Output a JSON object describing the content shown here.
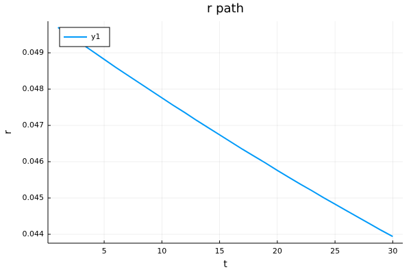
{
  "chart_data": {
    "type": "line",
    "title": "r path",
    "x_label": "t",
    "y_label": "r",
    "x": [
      1,
      2,
      3,
      4,
      5,
      6,
      7,
      8,
      9,
      10,
      11,
      12,
      13,
      14,
      15,
      16,
      17,
      18,
      19,
      20,
      21,
      22,
      23,
      24,
      25,
      26,
      27,
      28,
      29,
      30
    ],
    "series": [
      {
        "name": "y1",
        "color": "#009af9",
        "values": [
          0.0497,
          0.04948,
          0.04926,
          0.04904,
          0.04882,
          0.0486,
          0.04839,
          0.04818,
          0.04797,
          0.04776,
          0.04755,
          0.04735,
          0.04714,
          0.04694,
          0.04674,
          0.04654,
          0.04634,
          0.04615,
          0.04596,
          0.04576,
          0.04557,
          0.04538,
          0.0452,
          0.04501,
          0.04483,
          0.04465,
          0.04447,
          0.04429,
          0.04411,
          0.04394
        ]
      }
    ],
    "xlim": [
      0.13,
      30.87
    ],
    "ylim": [
      0.043755,
      0.04987
    ],
    "xticks": [
      5,
      10,
      15,
      20,
      25,
      30
    ],
    "yticks": [
      0.044,
      0.045,
      0.046,
      0.047,
      0.048,
      0.049
    ],
    "grid": true,
    "legend": "top-left"
  }
}
